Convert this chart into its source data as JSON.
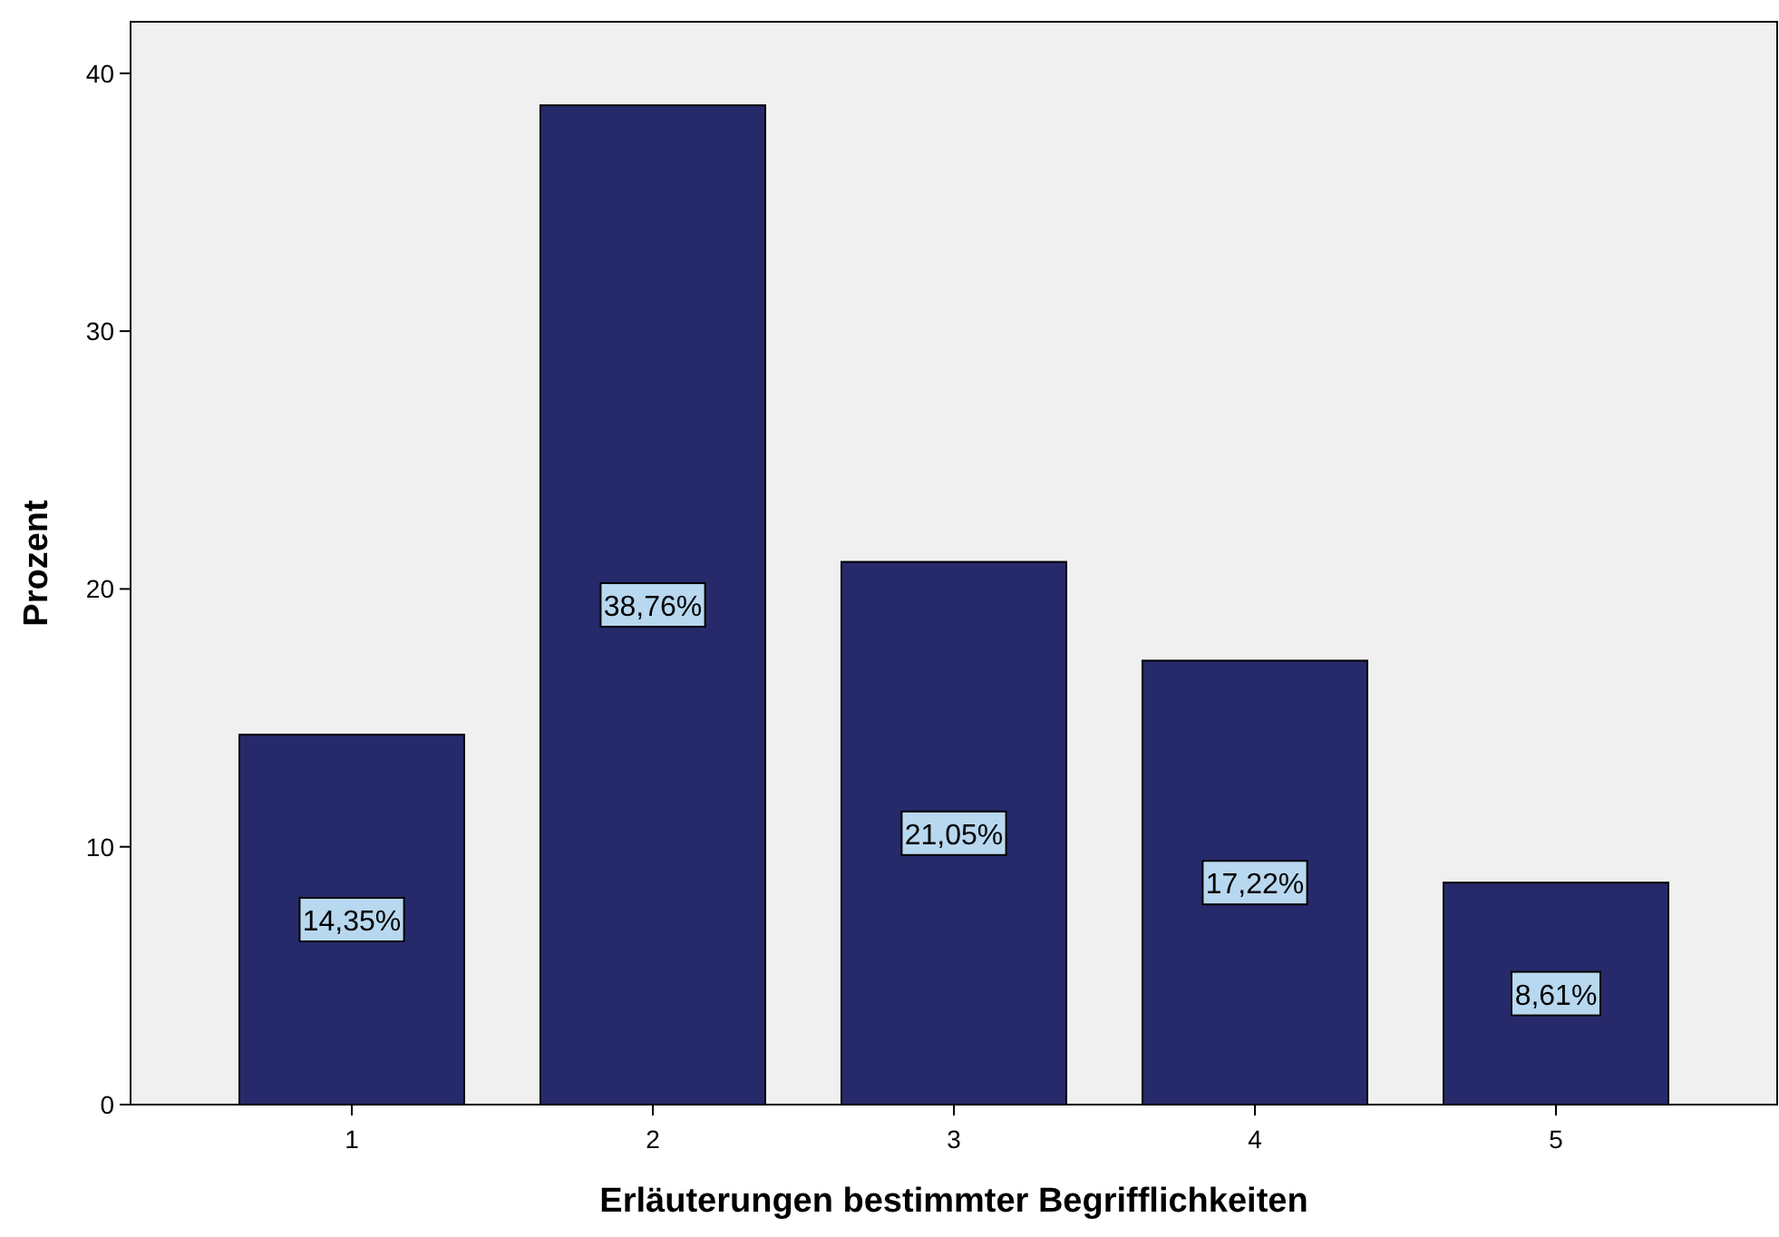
{
  "chart_data": {
    "type": "bar",
    "xlabel": "Erläuterungen bestimmter Begrifflichkeiten",
    "ylabel": "Prozent",
    "categories": [
      "1",
      "2",
      "3",
      "4",
      "5"
    ],
    "values": [
      14.35,
      38.76,
      21.05,
      17.22,
      8.61
    ],
    "value_labels": [
      "14,35%",
      "38,76%",
      "21,05%",
      "17,22%",
      "8,61%"
    ],
    "color": "#262a6b",
    "ylim": [
      0,
      42
    ],
    "yticks": [
      0,
      10,
      20,
      30,
      40
    ],
    "grid": false
  }
}
